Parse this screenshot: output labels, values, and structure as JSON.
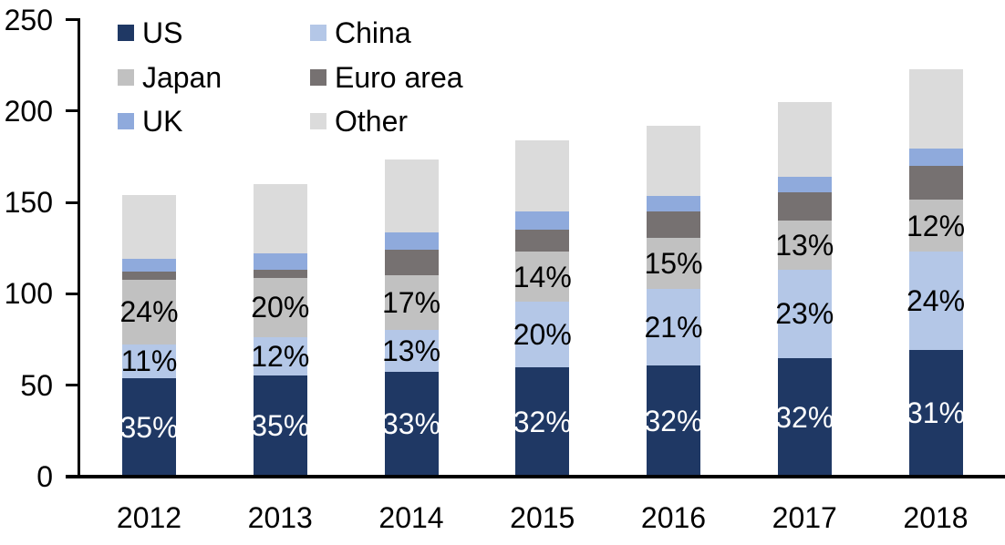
{
  "chart_data": {
    "type": "bar",
    "stacked": true,
    "title": "",
    "xlabel": "",
    "ylabel": "",
    "categories": [
      "2012",
      "2013",
      "2014",
      "2015",
      "2016",
      "2017",
      "2018"
    ],
    "series": [
      {
        "name": "US",
        "color": "#1F3864",
        "values": [
          54,
          55.5,
          57.5,
          60,
          61,
          65,
          69.5
        ],
        "segment_labels": [
          "35%",
          "35%",
          "33%",
          "32%",
          "32%",
          "32%",
          "31%"
        ],
        "label_color": "#FFFFFF"
      },
      {
        "name": "China",
        "color": "#B4C7E7",
        "values": [
          18.5,
          21,
          23,
          35.5,
          41.5,
          48,
          53.5
        ],
        "segment_labels": [
          "11%",
          "12%",
          "13%",
          "20%",
          "21%",
          "23%",
          "24%"
        ],
        "label_color": "#000000"
      },
      {
        "name": "Japan",
        "color": "#C1C1C1",
        "values": [
          35,
          32,
          29.5,
          27.5,
          28,
          27,
          28.5
        ],
        "segment_labels": [
          "24%",
          "20%",
          "17%",
          "14%",
          "15%",
          "13%",
          "12%"
        ],
        "label_color": "#000000"
      },
      {
        "name": "Euro area",
        "color": "#767171",
        "values": [
          4.5,
          4.5,
          14,
          12,
          14.5,
          15.5,
          18.5
        ],
        "segment_labels": null,
        "label_color": "#000000"
      },
      {
        "name": "UK",
        "color": "#8FAADC",
        "values": [
          7,
          9,
          9.5,
          10,
          8.5,
          8.5,
          9.5
        ],
        "segment_labels": null,
        "label_color": "#000000"
      },
      {
        "name": "Other",
        "color": "#DBDBDB",
        "values": [
          35,
          38,
          40,
          39,
          38.5,
          41,
          43.5
        ],
        "segment_labels": null,
        "label_color": "#000000"
      }
    ],
    "totals_approx": [
      154,
      160,
      173.5,
      184,
      192,
      205,
      223
    ],
    "y_axis": {
      "min": 0,
      "max": 250,
      "tick_step": 50,
      "ticks": [
        0,
        50,
        100,
        150,
        200,
        250
      ]
    },
    "legend": {
      "position": "top-left",
      "columns": 2,
      "order": [
        "US",
        "China",
        "Japan",
        "Euro area",
        "UK",
        "Other"
      ]
    },
    "axis_color": "#000000",
    "background_color": "#FFFFFF"
  }
}
